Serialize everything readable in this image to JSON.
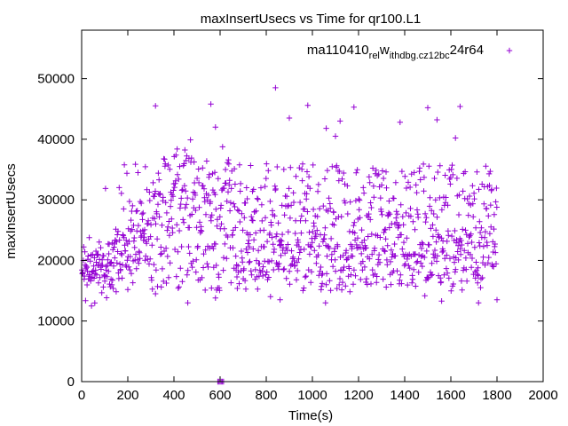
{
  "chart_data": {
    "type": "scatter",
    "title": "maxInsertUsecs vs Time for qr100.L1",
    "xlabel": "Time(s)",
    "ylabel": "maxInsertUsecs",
    "xlim": [
      0,
      2000
    ],
    "ylim": [
      0,
      58000
    ],
    "xticks": [
      0,
      200,
      400,
      600,
      800,
      1000,
      1200,
      1400,
      1600,
      1800,
      2000
    ],
    "yticks": [
      0,
      10000,
      20000,
      30000,
      40000,
      50000
    ],
    "xtick_labels": [
      "0",
      "200",
      "400",
      "600",
      "800",
      "1000",
      "1200",
      "1400",
      "1600",
      "1800",
      "2000"
    ],
    "ytick_labels": [
      "0",
      "10000",
      "20000",
      "30000",
      "40000",
      "50000"
    ],
    "marker": "+",
    "color": "#9400d3",
    "legend_position": "top-right",
    "series": [
      {
        "name": "ma110410_rel_withdbg.cz12b_c24r64",
        "legend_main": "ma110410",
        "legend_sub1": "rel",
        "legend_mid": "w",
        "legend_sub2": "ithdbg.cz12b",
        "legend_tail_sub": "c",
        "legend_tail": "24r64",
        "outliers": [
          [
            320,
            45500
          ],
          [
            560,
            45800
          ],
          [
            840,
            48500
          ],
          [
            980,
            45600
          ],
          [
            1060,
            41800
          ],
          [
            1120,
            43000
          ],
          [
            1180,
            45300
          ],
          [
            1380,
            42800
          ],
          [
            1500,
            45200
          ],
          [
            1640,
            45400
          ],
          [
            1540,
            43200
          ],
          [
            900,
            43500
          ],
          [
            1100,
            40500
          ],
          [
            1620,
            40200
          ],
          [
            580,
            42000
          ],
          [
            460,
            13000
          ],
          [
            580,
            13800
          ],
          [
            860,
            13500
          ],
          [
            1560,
            13300
          ],
          [
            1720,
            13000
          ],
          [
            1800,
            13500
          ],
          [
            1060,
            16000
          ],
          [
            1320,
            15600
          ],
          [
            320,
            14500
          ],
          [
            200,
            15200
          ],
          [
            590,
            0
          ],
          [
            595,
            0
          ],
          [
            600,
            0
          ],
          [
            605,
            0
          ],
          [
            610,
            0
          ],
          [
            615,
            0
          ]
        ]
      }
    ]
  }
}
